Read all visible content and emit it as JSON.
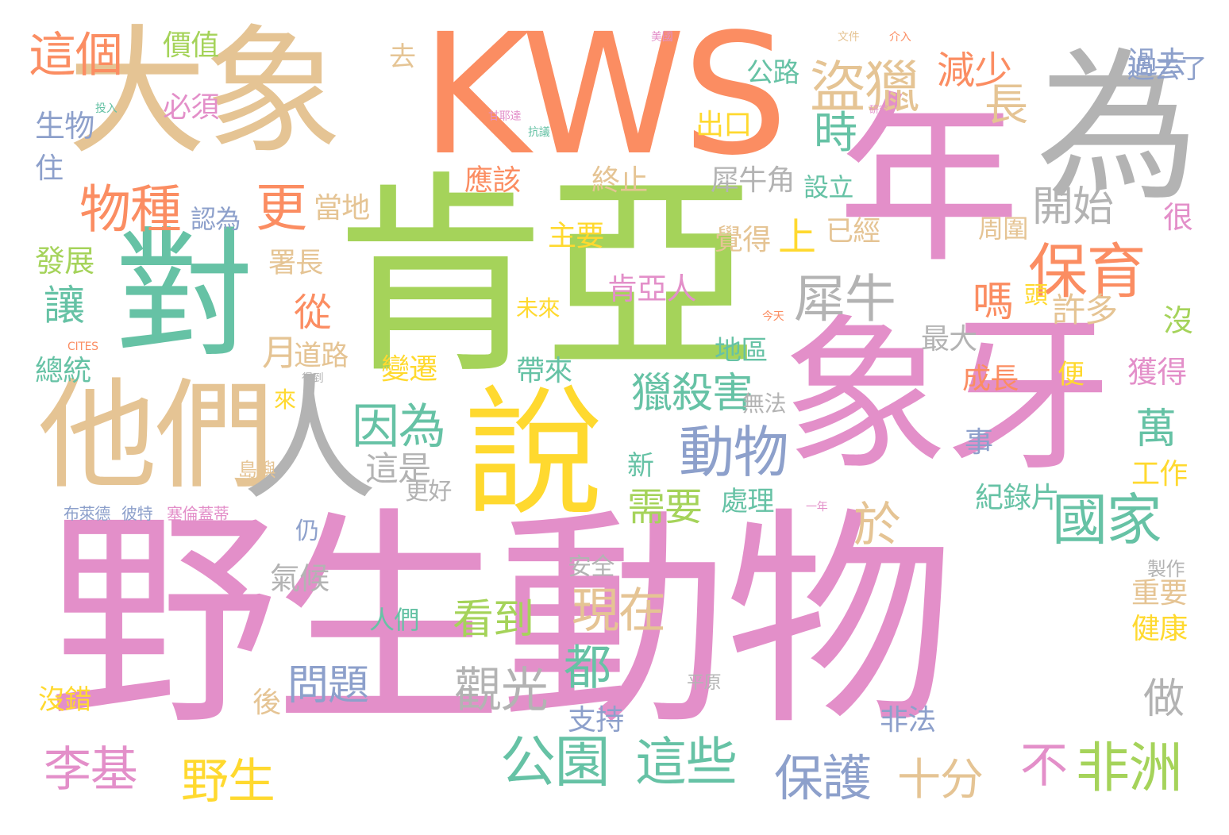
{
  "palette": {
    "pink": "#e38fc9",
    "green": "#a5d35a",
    "orange": "#fb8d62",
    "tan": "#e5c494",
    "gray": "#b3b3b3",
    "teal": "#66c2a5",
    "blue": "#8da0cb",
    "yellow": "#ffd92f"
  },
  "words": [
    "野生動物",
    "肯亞",
    "象牙",
    "年",
    "大象",
    "KWS",
    "為",
    "對",
    "他們",
    "說",
    "人",
    "盜獵",
    "保育",
    "動物",
    "國家",
    "公園",
    "非洲",
    "物種",
    "更",
    "這個",
    "價值",
    "犀牛",
    "因為",
    "於",
    "都",
    "現在",
    "觀光",
    "看到",
    "問題",
    "野生",
    "李基",
    "這些",
    "保護",
    "十分",
    "不",
    "時",
    "長",
    "減少",
    "過去",
    "開始",
    "嗎",
    "讓",
    "從",
    "獵殺害",
    "這是",
    "萬",
    "做",
    "生物",
    "必須",
    "發展",
    "總統",
    "月",
    "道路",
    "帶來",
    "需要",
    "上",
    "已經",
    "許多",
    "最大",
    "獲得",
    "很",
    "沒",
    "成長",
    "工作",
    "紀錄片",
    "重要",
    "健康",
    "製作",
    "後",
    "支持",
    "非法",
    "沒錯",
    "變遷",
    "人們",
    "安全",
    "處理",
    "地區",
    "出口",
    "設立",
    "主要",
    "覺得",
    "周圍",
    "頭",
    "便",
    "事",
    "應該",
    "終止",
    "犀牛角",
    "署長",
    "當地",
    "認為",
    "氣候",
    "仍",
    "布萊德",
    "彼特",
    "塞倫蓋蒂",
    "島嶼",
    "更好",
    "新",
    "來",
    "無法",
    "肯亞人",
    "未來",
    "公路",
    "去",
    "住",
    "平原",
    "過去了",
    "文件",
    "美國",
    "介入",
    "甘耶達",
    "抗議",
    "CITES",
    "今天",
    "研究",
    "投入",
    "得到",
    "一年"
  ]
}
